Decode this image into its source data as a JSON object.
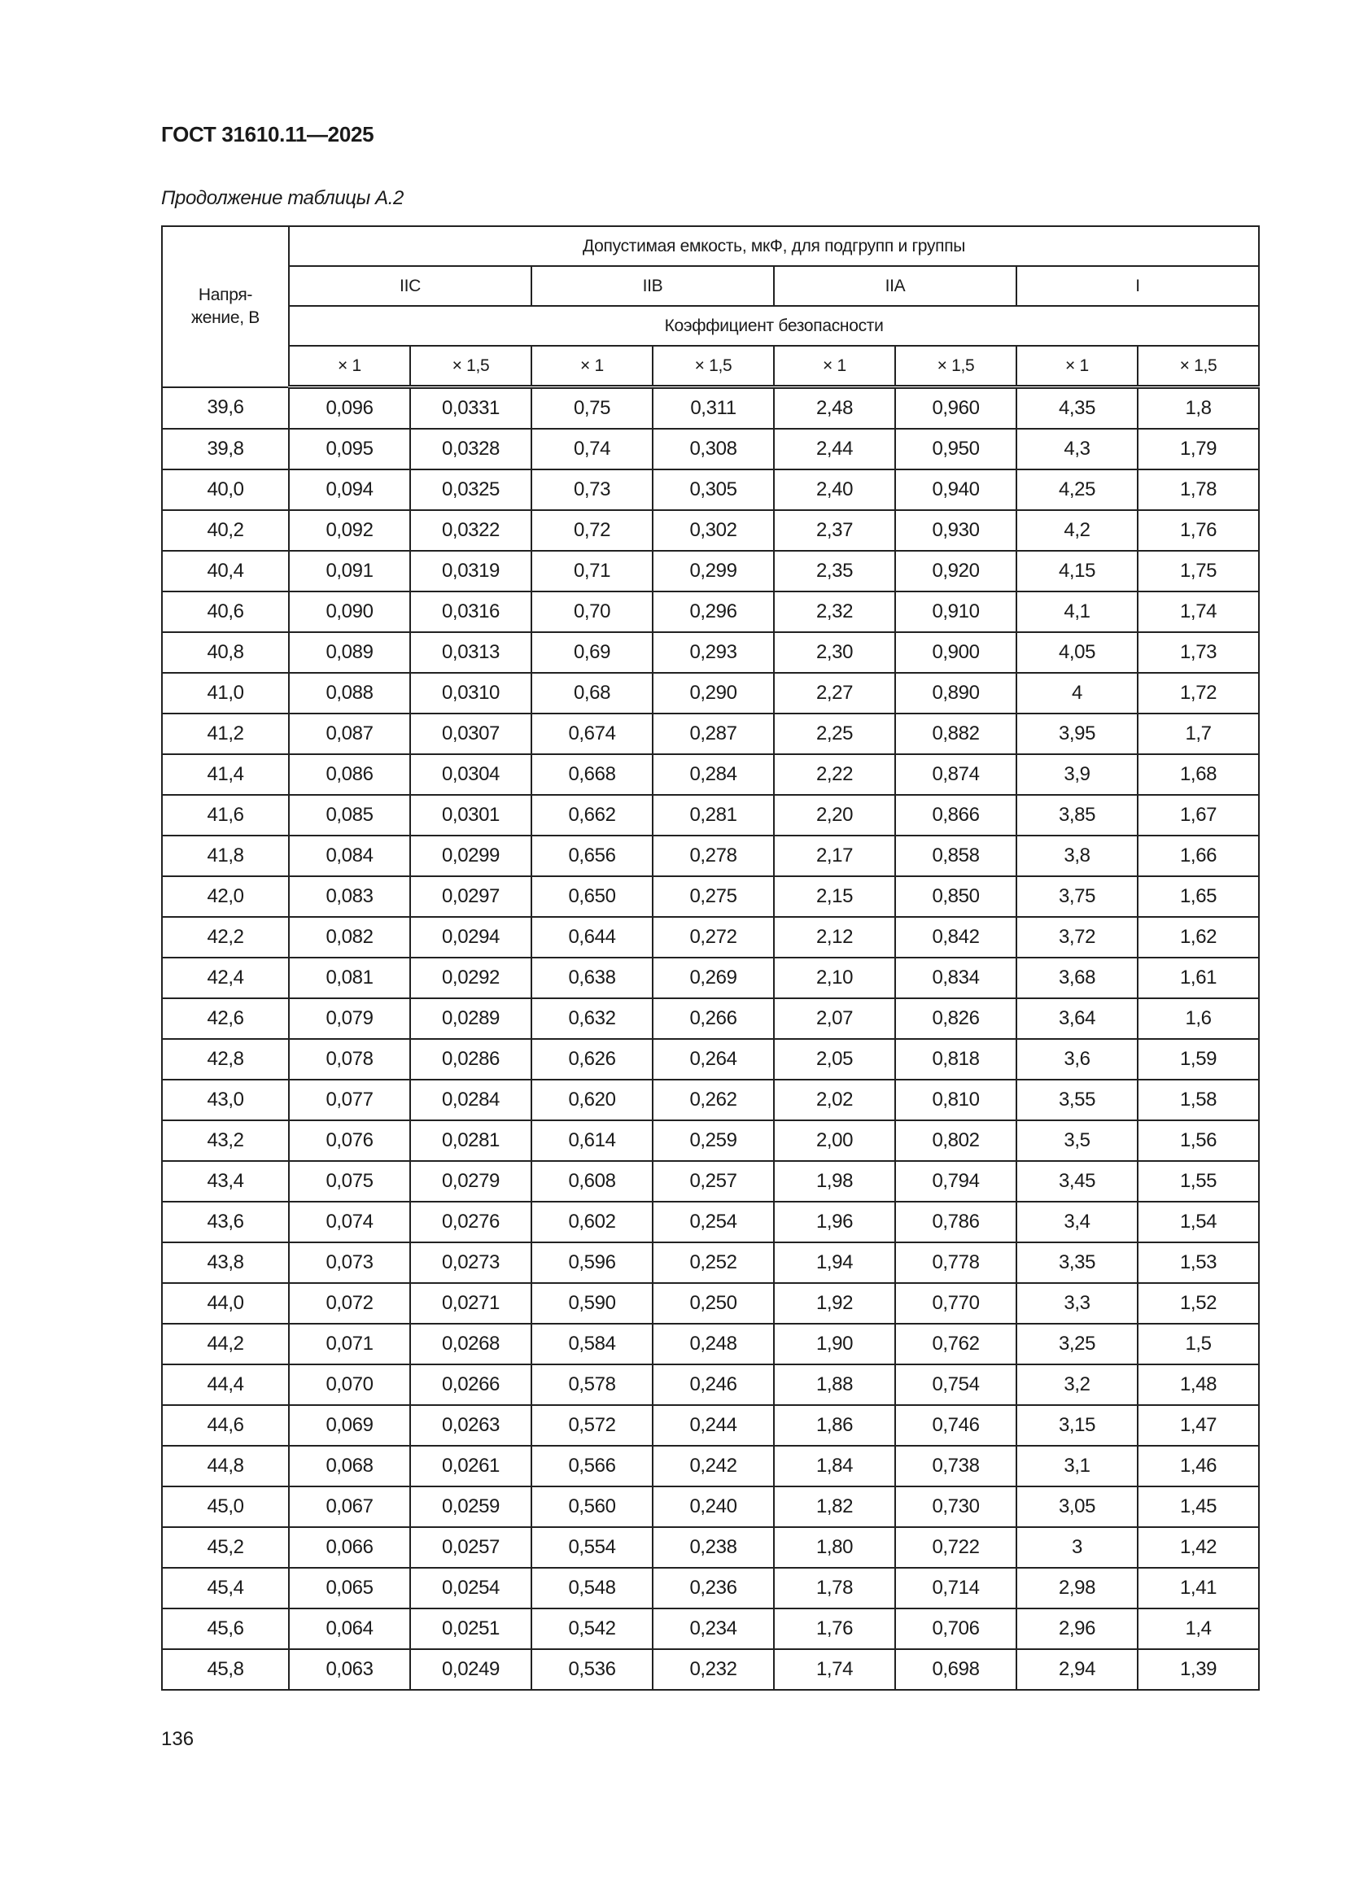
{
  "header": {
    "doc_title": "ГОСТ 31610.11—2025",
    "caption": "Продолжение таблицы А.2"
  },
  "table": {
    "voltage_header": "Напря-\nжение, В",
    "group_header": "Допустимая емкость, мкФ, для подгрупп и группы",
    "groups": [
      "IIC",
      "IIB",
      "IIA",
      "I"
    ],
    "factor_header": "Коэффициент безопасности",
    "factors": [
      "× 1",
      "× 1,5",
      "× 1",
      "× 1,5",
      "× 1",
      "× 1,5",
      "× 1",
      "× 1,5"
    ],
    "rows": [
      [
        "39,6",
        "0,096",
        "0,0331",
        "0,75",
        "0,311",
        "2,48",
        "0,960",
        "4,35",
        "1,8"
      ],
      [
        "39,8",
        "0,095",
        "0,0328",
        "0,74",
        "0,308",
        "2,44",
        "0,950",
        "4,3",
        "1,79"
      ],
      [
        "40,0",
        "0,094",
        "0,0325",
        "0,73",
        "0,305",
        "2,40",
        "0,940",
        "4,25",
        "1,78"
      ],
      [
        "40,2",
        "0,092",
        "0,0322",
        "0,72",
        "0,302",
        "2,37",
        "0,930",
        "4,2",
        "1,76"
      ],
      [
        "40,4",
        "0,091",
        "0,0319",
        "0,71",
        "0,299",
        "2,35",
        "0,920",
        "4,15",
        "1,75"
      ],
      [
        "40,6",
        "0,090",
        "0,0316",
        "0,70",
        "0,296",
        "2,32",
        "0,910",
        "4,1",
        "1,74"
      ],
      [
        "40,8",
        "0,089",
        "0,0313",
        "0,69",
        "0,293",
        "2,30",
        "0,900",
        "4,05",
        "1,73"
      ],
      [
        "41,0",
        "0,088",
        "0,0310",
        "0,68",
        "0,290",
        "2,27",
        "0,890",
        "4",
        "1,72"
      ],
      [
        "41,2",
        "0,087",
        "0,0307",
        "0,674",
        "0,287",
        "2,25",
        "0,882",
        "3,95",
        "1,7"
      ],
      [
        "41,4",
        "0,086",
        "0,0304",
        "0,668",
        "0,284",
        "2,22",
        "0,874",
        "3,9",
        "1,68"
      ],
      [
        "41,6",
        "0,085",
        "0,0301",
        "0,662",
        "0,281",
        "2,20",
        "0,866",
        "3,85",
        "1,67"
      ],
      [
        "41,8",
        "0,084",
        "0,0299",
        "0,656",
        "0,278",
        "2,17",
        "0,858",
        "3,8",
        "1,66"
      ],
      [
        "42,0",
        "0,083",
        "0,0297",
        "0,650",
        "0,275",
        "2,15",
        "0,850",
        "3,75",
        "1,65"
      ],
      [
        "42,2",
        "0,082",
        "0,0294",
        "0,644",
        "0,272",
        "2,12",
        "0,842",
        "3,72",
        "1,62"
      ],
      [
        "42,4",
        "0,081",
        "0,0292",
        "0,638",
        "0,269",
        "2,10",
        "0,834",
        "3,68",
        "1,61"
      ],
      [
        "42,6",
        "0,079",
        "0,0289",
        "0,632",
        "0,266",
        "2,07",
        "0,826",
        "3,64",
        "1,6"
      ],
      [
        "42,8",
        "0,078",
        "0,0286",
        "0,626",
        "0,264",
        "2,05",
        "0,818",
        "3,6",
        "1,59"
      ],
      [
        "43,0",
        "0,077",
        "0,0284",
        "0,620",
        "0,262",
        "2,02",
        "0,810",
        "3,55",
        "1,58"
      ],
      [
        "43,2",
        "0,076",
        "0,0281",
        "0,614",
        "0,259",
        "2,00",
        "0,802",
        "3,5",
        "1,56"
      ],
      [
        "43,4",
        "0,075",
        "0,0279",
        "0,608",
        "0,257",
        "1,98",
        "0,794",
        "3,45",
        "1,55"
      ],
      [
        "43,6",
        "0,074",
        "0,0276",
        "0,602",
        "0,254",
        "1,96",
        "0,786",
        "3,4",
        "1,54"
      ],
      [
        "43,8",
        "0,073",
        "0,0273",
        "0,596",
        "0,252",
        "1,94",
        "0,778",
        "3,35",
        "1,53"
      ],
      [
        "44,0",
        "0,072",
        "0,0271",
        "0,590",
        "0,250",
        "1,92",
        "0,770",
        "3,3",
        "1,52"
      ],
      [
        "44,2",
        "0,071",
        "0,0268",
        "0,584",
        "0,248",
        "1,90",
        "0,762",
        "3,25",
        "1,5"
      ],
      [
        "44,4",
        "0,070",
        "0,0266",
        "0,578",
        "0,246",
        "1,88",
        "0,754",
        "3,2",
        "1,48"
      ],
      [
        "44,6",
        "0,069",
        "0,0263",
        "0,572",
        "0,244",
        "1,86",
        "0,746",
        "3,15",
        "1,47"
      ],
      [
        "44,8",
        "0,068",
        "0,0261",
        "0,566",
        "0,242",
        "1,84",
        "0,738",
        "3,1",
        "1,46"
      ],
      [
        "45,0",
        "0,067",
        "0,0259",
        "0,560",
        "0,240",
        "1,82",
        "0,730",
        "3,05",
        "1,45"
      ],
      [
        "45,2",
        "0,066",
        "0,0257",
        "0,554",
        "0,238",
        "1,80",
        "0,722",
        "3",
        "1,42"
      ],
      [
        "45,4",
        "0,065",
        "0,0254",
        "0,548",
        "0,236",
        "1,78",
        "0,714",
        "2,98",
        "1,41"
      ],
      [
        "45,6",
        "0,064",
        "0,0251",
        "0,542",
        "0,234",
        "1,76",
        "0,706",
        "2,96",
        "1,4"
      ],
      [
        "45,8",
        "0,063",
        "0,0249",
        "0,536",
        "0,232",
        "1,74",
        "0,698",
        "2,94",
        "1,39"
      ]
    ]
  },
  "footer": {
    "page_number": "136"
  }
}
